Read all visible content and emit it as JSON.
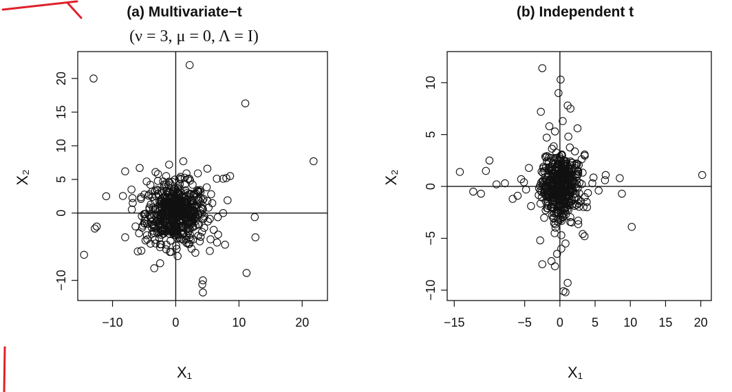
{
  "chart_data": [
    {
      "type": "scatter",
      "title": "(a) Multivariate−t",
      "subtitle": "(ν = 3, μ = 0, Λ = I)",
      "xlabel": "X₁",
      "ylabel": "X₂",
      "xlim": [
        -15.5,
        24
      ],
      "ylim": [
        -13,
        24
      ],
      "xticks": [
        -10,
        0,
        10,
        20
      ],
      "xtick_labels": [
        "−10",
        "0",
        "10",
        "20"
      ],
      "yticks": [
        -10,
        0,
        5,
        10,
        15,
        20
      ],
      "ytick_labels": [
        "−10",
        "0",
        "5",
        "10",
        "15",
        "20"
      ],
      "grid": false,
      "reference_lines": {
        "x": 0,
        "y": 0
      },
      "x": [
        -13,
        2.2,
        11,
        21.8,
        -14.5,
        -11,
        12.5,
        4.3,
        4.2,
        4.3,
        12.6,
        11.2,
        -3.4,
        -8,
        -5.7,
        -12.5,
        -12.8,
        -8,
        -6,
        8.6,
        8,
        7.8,
        7.5,
        6.5,
        5,
        1.2,
        -7,
        -6.8,
        -5.5,
        -4.5,
        -4,
        3.5,
        6.7,
        5.5,
        7.5,
        5.2,
        4.4,
        8.2,
        -2.8,
        -5,
        6,
        3.8,
        2.5,
        0.8,
        -1.5,
        -3,
        2,
        -2,
        4.5,
        -4.6,
        5.6,
        -5.8,
        1.7,
        3.1,
        -3.2,
        0.3
      ],
      "y": [
        20,
        22,
        16.3,
        7.7,
        -6.2,
        2.5,
        -0.6,
        -10,
        -10.6,
        -11.8,
        -3.6,
        -8.9,
        -8.2,
        6.2,
        6.7,
        -2,
        -2.3,
        -3.6,
        -5.7,
        5.5,
        5.2,
        -4.7,
        5.1,
        5.1,
        6.6,
        7.7,
        3.5,
        1.5,
        2.1,
        -3.9,
        4.2,
        5.9,
        -3.2,
        -3.9,
        0,
        0.8,
        2.1,
        1.9,
        5.8,
        -1.5,
        -2.5,
        -4.2,
        -5.3,
        5,
        -5.4,
        3.5,
        -4.6,
        4.7,
        -2.2,
        4.7,
        2.8,
        -3,
        5.9,
        -5.9,
        6.1,
        -6.4
      ],
      "core": {
        "center": [
          0,
          0
        ],
        "x_spread": 2.4,
        "y_spread": 2.2,
        "n": 520
      }
    },
    {
      "type": "scatter",
      "title": "(b) Independent t",
      "xlabel": "X₁",
      "ylabel": "X₂",
      "xlim": [
        -16,
        21.5
      ],
      "ylim": [
        -11,
        13
      ],
      "xticks": [
        -15,
        -5,
        0,
        5,
        10,
        15,
        20
      ],
      "xtick_labels": [
        "−15",
        "−5",
        "0",
        "5",
        "10",
        "15",
        "20"
      ],
      "yticks": [
        -10,
        -5,
        0,
        5,
        10
      ],
      "ytick_labels": [
        "−10",
        "−5",
        "0",
        "5",
        "10"
      ],
      "grid": false,
      "reference_lines": {
        "x": 0,
        "y": 0
      },
      "x": [
        -14.2,
        20.2,
        -2.5,
        0.1,
        -0.2,
        -2.7,
        1.1,
        1.5,
        -10,
        -11.2,
        -12.3,
        -10.5,
        -9,
        -7.8,
        8.8,
        8.5,
        10.2,
        6.5,
        6.4,
        5.5,
        4.6,
        3.5,
        -6.7,
        -5.5,
        -4.8,
        -6,
        -5.1,
        0.5,
        1.1,
        0.8,
        -1.2,
        0.8,
        0.2,
        -0.4,
        -1.5,
        -0.7,
        -0.7,
        0.4,
        1.2,
        -2.8,
        2.5,
        -2.5,
        0.2
      ],
      "y": [
        1.4,
        1.1,
        11.4,
        10.3,
        9,
        7.2,
        7.8,
        7.5,
        2.5,
        -0.7,
        -0.5,
        1.5,
        0.2,
        0.3,
        -0.7,
        0.8,
        -3.9,
        1.1,
        0.6,
        -0.4,
        0.3,
        -4.8,
        -1.2,
        0.7,
        -0.3,
        -0.9,
        0.4,
        -10.1,
        -9.3,
        -10.2,
        -7.2,
        -5.5,
        -6,
        -6.5,
        5.8,
        5.3,
        -7.7,
        6.3,
        4.8,
        -5.2,
        5.6,
        -7.5,
        -4.7
      ],
      "core": {
        "center": [
          0,
          0
        ],
        "x_spread": 1.4,
        "y_spread": 1.5,
        "n": 480
      }
    }
  ]
}
